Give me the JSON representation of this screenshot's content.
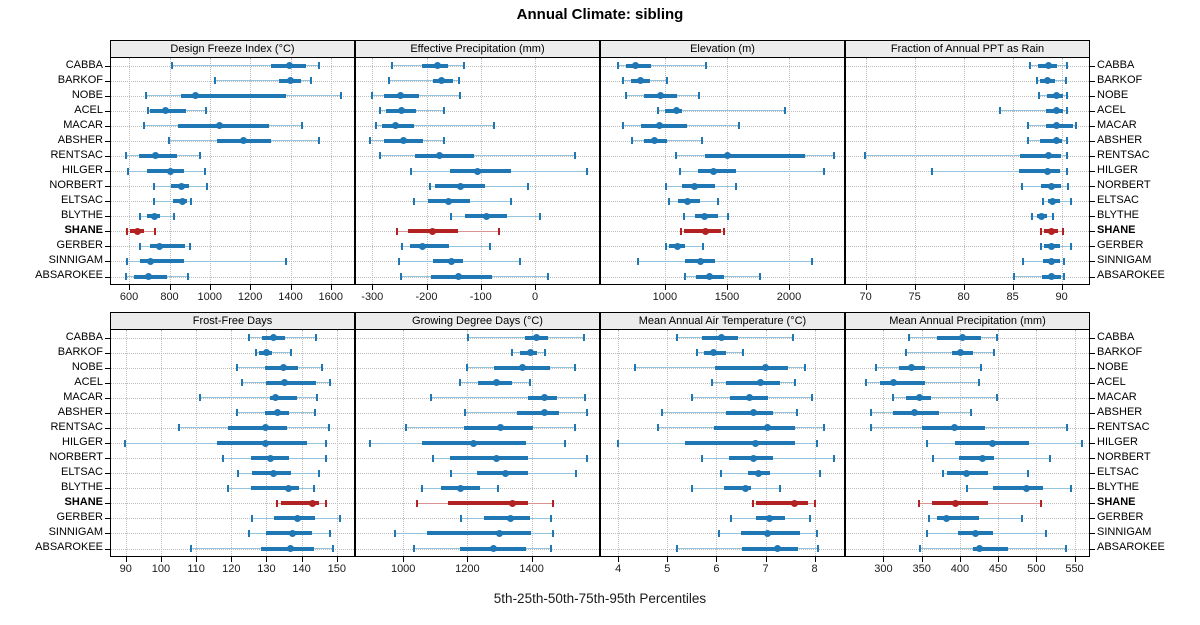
{
  "title": "Annual Climate: sibling",
  "footer": "5th-25th-50th-75th-95th Percentiles",
  "highlight_station": "SHANE",
  "colors": {
    "series": "#1f77b4",
    "series_light": "#96c3de",
    "highlight": "#b22222",
    "highlight_light": "#d99191",
    "strip_bg": "#ececec",
    "grid": "#bdbdbd",
    "panel_border": "#000000"
  },
  "chart_data": {
    "type": "dotplot",
    "note": "Each row shows 5th-25th-50th-75th-95th percentile whiskers per station; SHANE highlighted",
    "percentile_labels": [
      "5th",
      "25th",
      "50th",
      "75th",
      "95th"
    ],
    "stations": [
      "CABBA",
      "BARKOF",
      "NOBE",
      "ACEL",
      "MACAR",
      "ABSHER",
      "RENTSAC",
      "HILGER",
      "NORBERT",
      "ELTSAC",
      "BLYTHE",
      "SHANE",
      "GERBER",
      "SINNIGAM",
      "ABSAROKEE"
    ],
    "panels": [
      {
        "title": "Design Freeze Index (°C)",
        "row": 0,
        "xlim": [
          510,
          1715
        ],
        "ticks": [
          600,
          800,
          1000,
          1200,
          1400,
          1600
        ],
        "values": [
          [
            810,
            1305,
            1395,
            1475,
            1540
          ],
          [
            1025,
            1345,
            1400,
            1450,
            1500
          ],
          [
            685,
            855,
            930,
            1380,
            1650
          ],
          [
            695,
            705,
            780,
            880,
            980
          ],
          [
            675,
            840,
            1050,
            1295,
            1455
          ],
          [
            795,
            1035,
            1165,
            1305,
            1540
          ],
          [
            585,
            650,
            730,
            840,
            950
          ],
          [
            595,
            690,
            805,
            870,
            975
          ],
          [
            725,
            805,
            860,
            895,
            985
          ],
          [
            725,
            815,
            865,
            885,
            905
          ],
          [
            655,
            690,
            725,
            755,
            820
          ],
          [
            590,
            605,
            640,
            675,
            730
          ],
          [
            655,
            705,
            750,
            875,
            900
          ],
          [
            590,
            655,
            705,
            870,
            1380
          ],
          [
            585,
            625,
            695,
            790,
            890
          ]
        ]
      },
      {
        "title": "Effective Precipitation (mm)",
        "row": 0,
        "xlim": [
          -330,
          118
        ],
        "ticks": [
          -300,
          -200,
          -100,
          0
        ],
        "values": [
          [
            -263,
            -208,
            -180,
            -160,
            -131
          ],
          [
            -270,
            -189,
            -173,
            -152,
            -140
          ],
          [
            -300,
            -279,
            -248,
            -214,
            -138
          ],
          [
            -285,
            -275,
            -247,
            -220,
            -168
          ],
          [
            -293,
            -282,
            -257,
            -224,
            -75
          ],
          [
            -304,
            -278,
            -242,
            -207,
            -168
          ],
          [
            -285,
            -222,
            -176,
            -113,
            74
          ],
          [
            -228,
            -156,
            -107,
            -45,
            96
          ],
          [
            -194,
            -184,
            -138,
            -92,
            -13
          ],
          [
            -223,
            -198,
            -160,
            -120,
            -45
          ],
          [
            -155,
            -129,
            -90,
            -52,
            9
          ],
          [
            -254,
            -235,
            -189,
            -142,
            -66
          ],
          [
            -245,
            -230,
            -208,
            -159,
            -83
          ],
          [
            -251,
            -189,
            -154,
            -133,
            -27
          ],
          [
            -247,
            -192,
            -141,
            -80,
            24
          ]
        ]
      },
      {
        "title": "Elevation (m)",
        "row": 0,
        "xlim": [
          485,
          2443
        ],
        "ticks": [
          1000,
          1500,
          2000
        ],
        "values": [
          [
            620,
            690,
            760,
            890,
            1330
          ],
          [
            660,
            725,
            800,
            880,
            1015
          ],
          [
            685,
            828,
            962,
            1100,
            1275
          ],
          [
            940,
            1000,
            1095,
            1140,
            1965
          ],
          [
            658,
            806,
            954,
            1182,
            1600
          ],
          [
            735,
            833,
            915,
            1020,
            1300
          ],
          [
            1085,
            1325,
            1505,
            2130,
            2365
          ],
          [
            1125,
            1265,
            1390,
            1570,
            2280
          ],
          [
            1010,
            1137,
            1240,
            1405,
            1570
          ],
          [
            1030,
            1105,
            1180,
            1280,
            1427
          ],
          [
            1155,
            1240,
            1315,
            1427,
            1508
          ],
          [
            1130,
            1150,
            1330,
            1450,
            1475
          ],
          [
            1005,
            1032,
            1097,
            1164,
            1306
          ],
          [
            780,
            1165,
            1285,
            1405,
            2185
          ],
          [
            1165,
            1250,
            1360,
            1480,
            1765
          ]
        ]
      },
      {
        "title": "Fraction of Annual PPT as Rain",
        "row": 0,
        "xlim": [
          68,
          92.8
        ],
        "ticks": [
          70,
          75,
          80,
          85,
          90
        ],
        "values": [
          [
            86.8,
            87.6,
            88.7,
            89.5,
            90.5
          ],
          [
            87.5,
            87.8,
            88.6,
            89.3,
            90.4
          ],
          [
            87.7,
            88.5,
            89.5,
            90.1,
            90.6
          ],
          [
            83.7,
            88.4,
            89.5,
            90.1,
            90.5
          ],
          [
            86.6,
            88.4,
            89.5,
            91.2,
            91.5
          ],
          [
            86.6,
            87.8,
            89.5,
            90.0,
            90.5
          ],
          [
            69.9,
            85.8,
            88.7,
            89.9,
            90.6
          ],
          [
            76.8,
            85.7,
            88.6,
            89.8,
            90.5
          ],
          [
            86.0,
            87.9,
            89.0,
            89.9,
            90.7
          ],
          [
            88.1,
            88.6,
            89.1,
            89.9,
            91.0
          ],
          [
            87.0,
            87.5,
            87.9,
            88.5,
            89.1
          ],
          [
            87.9,
            88.2,
            89.0,
            89.6,
            90.1
          ],
          [
            87.9,
            88.2,
            89.0,
            89.8,
            91.0
          ],
          [
            86.1,
            88.1,
            89.0,
            89.8,
            90.2
          ],
          [
            85.1,
            88.0,
            89.0,
            89.9,
            90.2
          ]
        ]
      },
      {
        "title": "Frost-Free Days",
        "row": 1,
        "xlim": [
          85.8,
          154.9
        ],
        "ticks": [
          90,
          100,
          110,
          120,
          130,
          140,
          150
        ],
        "values": [
          [
            125,
            128.7,
            132,
            135.3,
            144
          ],
          [
            127,
            128,
            130,
            131.6,
            137
          ],
          [
            121.7,
            129.6,
            134.9,
            139.1,
            145.9
          ],
          [
            123,
            130,
            135,
            144,
            148
          ],
          [
            111,
            131,
            132.5,
            138.8,
            144.3
          ],
          [
            121.7,
            129.6,
            133,
            136.5,
            143.7
          ],
          [
            105,
            119,
            129.6,
            135.8,
            147.7
          ],
          [
            89.7,
            115.8,
            129.6,
            141.4,
            146.8
          ],
          [
            117.5,
            125.7,
            131,
            136.3,
            147
          ],
          [
            122,
            126,
            132,
            137,
            145
          ],
          [
            119,
            125.7,
            136.3,
            139.4,
            143.6
          ],
          [
            133,
            134.2,
            143,
            145,
            147
          ],
          [
            126,
            132,
            138.7,
            143.9,
            151
          ],
          [
            125,
            129.8,
            137.5,
            143,
            148
          ],
          [
            108.5,
            128.4,
            136.8,
            143.6,
            149
          ]
        ]
      },
      {
        "title": "Growing Degree Days (°C)",
        "row": 1,
        "xlim": [
          853,
          1610
        ],
        "ticks": [
          1000,
          1200,
          1400
        ],
        "values": [
          [
            1203,
            1379,
            1414,
            1450,
            1563
          ],
          [
            1338,
            1364,
            1396,
            1417,
            1442
          ],
          [
            1200,
            1283,
            1370,
            1458,
            1536
          ],
          [
            1177,
            1234,
            1292,
            1338,
            1396
          ],
          [
            1085,
            1388,
            1440,
            1478,
            1567
          ],
          [
            1192,
            1353,
            1440,
            1484,
            1572
          ],
          [
            1010,
            1190,
            1304,
            1403,
            1536
          ],
          [
            896,
            1059,
            1218,
            1384,
            1504
          ],
          [
            1094,
            1146,
            1292,
            1388,
            1572
          ],
          [
            1148,
            1231,
            1320,
            1388,
            1537
          ],
          [
            1059,
            1117,
            1179,
            1240,
            1294
          ],
          [
            1042,
            1138,
            1341,
            1388,
            1468
          ],
          [
            1179,
            1252,
            1333,
            1396,
            1460
          ],
          [
            975,
            1073,
            1301,
            1398,
            1465
          ],
          [
            1033,
            1177,
            1281,
            1382,
            1460
          ]
        ]
      },
      {
        "title": "Mean Annual Air Temperature (°C)",
        "row": 1,
        "xlim": [
          3.65,
          8.6
        ],
        "ticks": [
          4,
          5,
          6,
          7,
          8
        ],
        "values": [
          [
            5.2,
            5.7,
            6.1,
            6.45,
            7.55
          ],
          [
            5.6,
            5.75,
            5.95,
            6.2,
            6.55
          ],
          [
            4.35,
            5.97,
            7.0,
            7.47,
            7.8
          ],
          [
            5.9,
            6.2,
            6.9,
            7.3,
            7.6
          ],
          [
            5.5,
            6.28,
            6.67,
            7.05,
            7.95
          ],
          [
            4.9,
            6.2,
            6.75,
            7.15,
            7.65
          ],
          [
            4.8,
            5.95,
            7.05,
            7.6,
            8.2
          ],
          [
            4.0,
            5.35,
            6.8,
            7.6,
            8.05
          ],
          [
            5.7,
            6.25,
            6.75,
            7.15,
            8.4
          ],
          [
            6.1,
            6.65,
            6.85,
            7.1,
            8.1
          ],
          [
            5.5,
            6.15,
            6.6,
            6.7,
            7.3
          ],
          [
            6.75,
            6.8,
            7.6,
            7.87,
            8.0
          ],
          [
            6.3,
            6.8,
            7.08,
            7.4,
            7.9
          ],
          [
            6.05,
            6.5,
            7.05,
            7.7,
            8.05
          ],
          [
            5.2,
            6.53,
            7.24,
            7.66,
            8.07
          ]
        ]
      },
      {
        "title": "Mean Annual Precipitation (mm)",
        "row": 1,
        "xlim": [
          251,
          569
        ],
        "ticks": [
          300,
          350,
          400,
          450,
          500,
          550
        ],
        "values": [
          [
            333,
            370,
            404,
            428,
            449
          ],
          [
            330,
            390,
            401,
            417,
            444
          ],
          [
            290,
            320,
            337,
            354,
            427
          ],
          [
            277,
            296,
            313,
            354,
            425
          ],
          [
            312,
            330,
            347,
            362,
            449
          ],
          [
            284,
            313,
            340,
            373,
            415
          ],
          [
            283,
            350,
            393,
            433,
            540
          ],
          [
            357,
            393,
            443,
            490,
            560
          ],
          [
            365,
            399,
            429,
            445,
            518
          ],
          [
            378,
            383,
            409,
            437,
            489
          ],
          [
            409,
            443,
            487,
            509,
            545
          ],
          [
            347,
            363,
            394,
            437,
            506
          ],
          [
            360,
            370,
            383,
            425,
            481
          ],
          [
            357,
            398,
            420,
            443,
            513
          ],
          [
            348,
            417,
            425,
            463,
            539
          ]
        ]
      }
    ]
  }
}
